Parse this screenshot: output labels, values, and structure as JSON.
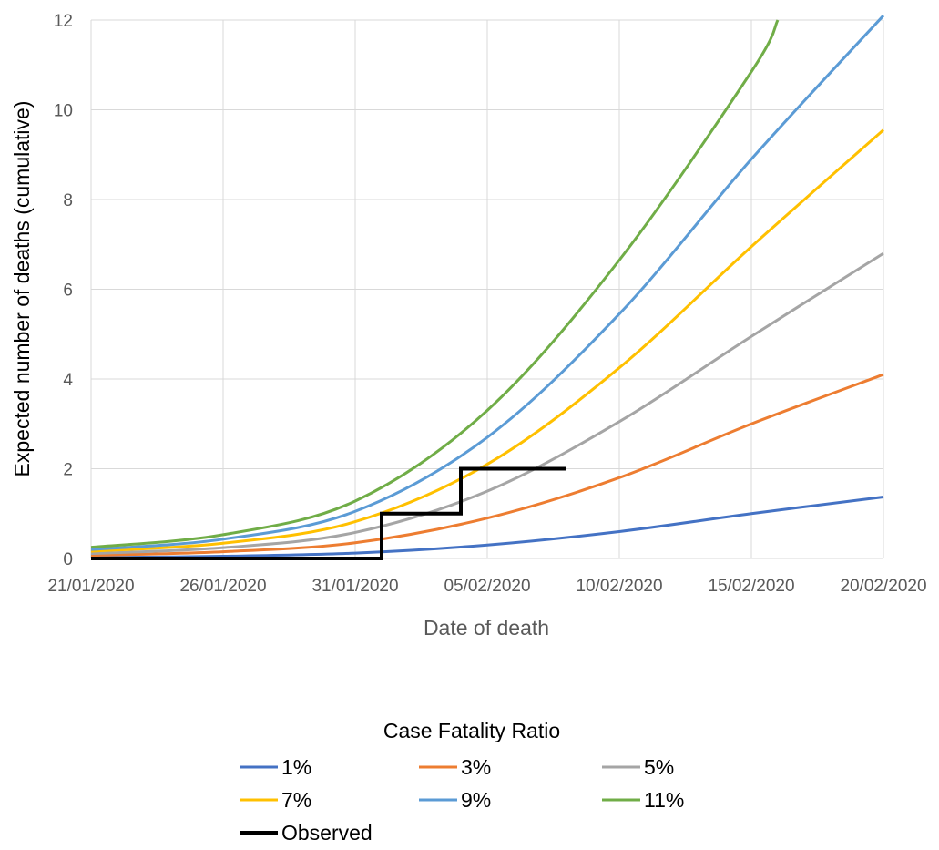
{
  "chart_data": {
    "type": "line",
    "title": "",
    "xlabel": "Date of death",
    "ylabel": "Expected number of deaths (cumulative)",
    "x_tick_labels": [
      "21/01/2020",
      "26/01/2020",
      "31/01/2020",
      "05/02/2020",
      "10/02/2020",
      "15/02/2020",
      "20/02/2020"
    ],
    "xlim": [
      "21/01/2020",
      "20/02/2020"
    ],
    "y_tick_labels": [
      "0",
      "2",
      "4",
      "6",
      "8",
      "10",
      "12"
    ],
    "ylim": [
      0,
      12
    ],
    "y_tick_values": [
      0,
      2,
      4,
      6,
      8,
      10,
      12
    ],
    "grid": true,
    "legend_title": "Case Fatality Ratio",
    "legend_position": "bottom",
    "series": [
      {
        "name": "1%",
        "color": "#4472C4",
        "x": [
          "21/01/2020",
          "26/01/2020",
          "31/01/2020",
          "05/02/2020",
          "10/02/2020",
          "15/02/2020",
          "20/02/2020"
        ],
        "y": [
          0.02,
          0.05,
          0.12,
          0.3,
          0.6,
          1.0,
          1.37
        ]
      },
      {
        "name": "3%",
        "color": "#ED7D31",
        "x": [
          "21/01/2020",
          "26/01/2020",
          "31/01/2020",
          "05/02/2020",
          "10/02/2020",
          "15/02/2020",
          "20/02/2020"
        ],
        "y": [
          0.07,
          0.15,
          0.35,
          0.9,
          1.8,
          3.0,
          4.1
        ]
      },
      {
        "name": "5%",
        "color": "#A5A5A5",
        "x": [
          "21/01/2020",
          "26/01/2020",
          "31/01/2020",
          "05/02/2020",
          "10/02/2020",
          "15/02/2020",
          "20/02/2020"
        ],
        "y": [
          0.11,
          0.24,
          0.58,
          1.5,
          3.05,
          4.95,
          6.8
        ]
      },
      {
        "name": "7%",
        "color": "#FFC000",
        "x": [
          "21/01/2020",
          "26/01/2020",
          "31/01/2020",
          "05/02/2020",
          "10/02/2020",
          "15/02/2020",
          "20/02/2020"
        ],
        "y": [
          0.16,
          0.34,
          0.82,
          2.1,
          4.25,
          6.95,
          9.55
        ]
      },
      {
        "name": "9%",
        "color": "#5B9BD5",
        "x": [
          "21/01/2020",
          "26/01/2020",
          "31/01/2020",
          "05/02/2020",
          "10/02/2020",
          "15/02/2020",
          "20/02/2020"
        ],
        "y": [
          0.2,
          0.43,
          1.05,
          2.7,
          5.45,
          8.9,
          12.1
        ]
      },
      {
        "name": "11%",
        "color": "#70AD47",
        "x": [
          "21/01/2020",
          "26/01/2020",
          "31/01/2020",
          "05/02/2020",
          "10/02/2020",
          "15/02/2020",
          "16/02/2020"
        ],
        "y": [
          0.25,
          0.53,
          1.28,
          3.3,
          6.65,
          10.85,
          12.0
        ]
      },
      {
        "name": "Observed",
        "color": "#000000",
        "step": true,
        "x": [
          "21/01/2020",
          "01/02/2020",
          "04/02/2020",
          "08/02/2020"
        ],
        "y": [
          0,
          1,
          2,
          2
        ]
      }
    ]
  }
}
